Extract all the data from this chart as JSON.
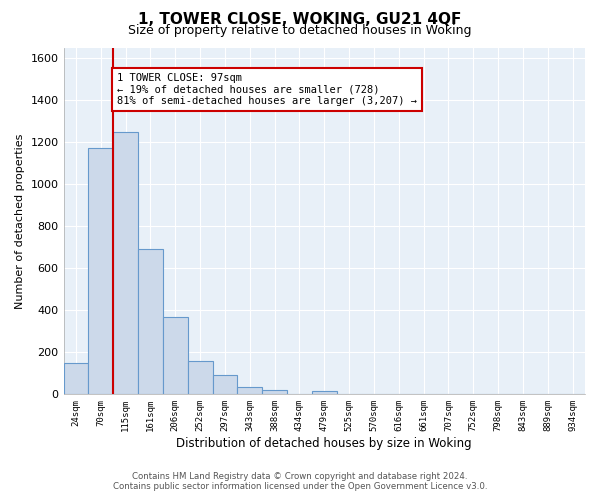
{
  "title": "1, TOWER CLOSE, WOKING, GU21 4QF",
  "subtitle": "Size of property relative to detached houses in Woking",
  "xlabel": "Distribution of detached houses by size in Woking",
  "ylabel": "Number of detached properties",
  "bar_labels": [
    "24sqm",
    "70sqm",
    "115sqm",
    "161sqm",
    "206sqm",
    "252sqm",
    "297sqm",
    "343sqm",
    "388sqm",
    "434sqm",
    "479sqm",
    "525sqm",
    "570sqm",
    "616sqm",
    "661sqm",
    "707sqm",
    "752sqm",
    "798sqm",
    "843sqm",
    "889sqm",
    "934sqm"
  ],
  "bar_values": [
    150,
    1170,
    1250,
    690,
    370,
    160,
    90,
    35,
    22,
    0,
    15,
    0,
    0,
    0,
    0,
    0,
    0,
    0,
    0,
    0,
    0
  ],
  "bar_color": "#ccd9ea",
  "bar_edge_color": "#6699cc",
  "ylim": [
    0,
    1650
  ],
  "yticks": [
    0,
    200,
    400,
    600,
    800,
    1000,
    1200,
    1400,
    1600
  ],
  "property_line_x": 1.5,
  "property_line_color": "#cc0000",
  "annotation_line1": "1 TOWER CLOSE: 97sqm",
  "annotation_line2": "← 19% of detached houses are smaller (728)",
  "annotation_line3": "81% of semi-detached houses are larger (3,207) →",
  "footer_line1": "Contains HM Land Registry data © Crown copyright and database right 2024.",
  "footer_line2": "Contains public sector information licensed under the Open Government Licence v3.0.",
  "plot_bg_color": "#e8f0f8",
  "fig_bg_color": "#ffffff",
  "grid_color": "#ffffff"
}
